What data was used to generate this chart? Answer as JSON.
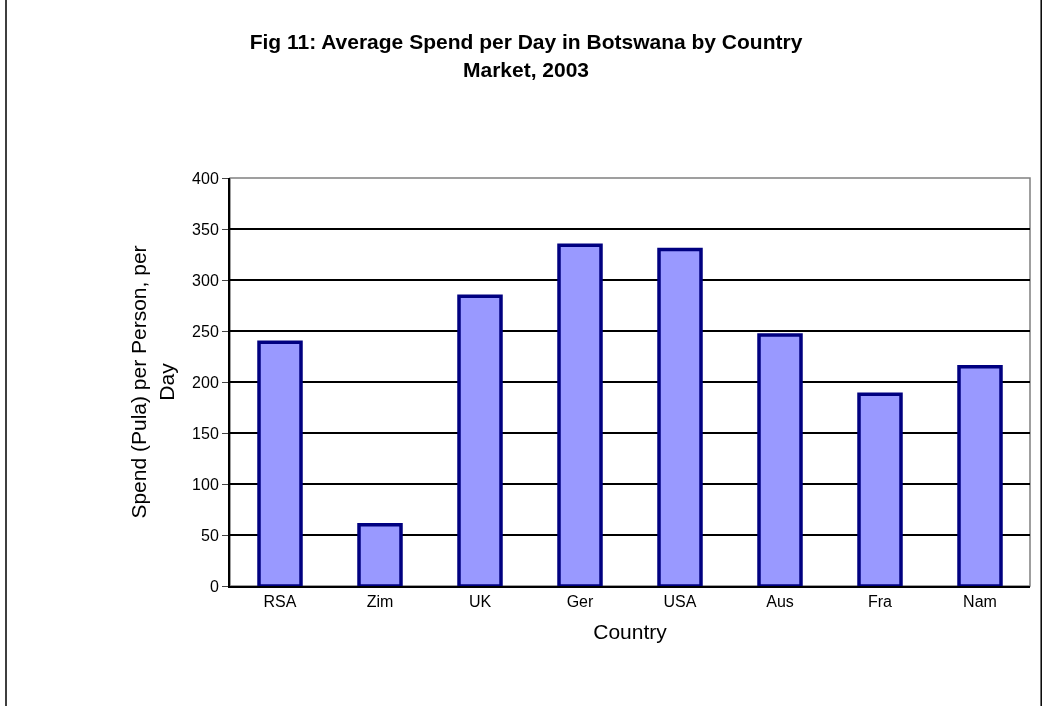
{
  "chart_data": {
    "type": "bar",
    "title": "Fig 11: Average Spend per Day in Botswana by Country Market, 2003",
    "xlabel": "Country",
    "ylabel": "Spend (Pula) per Person, per Day",
    "categories": [
      "RSA",
      "Zim",
      "UK",
      "Ger",
      "USA",
      "Aus",
      "Fra",
      "Nam"
    ],
    "values": [
      239,
      60,
      284,
      334,
      330,
      246,
      188,
      215
    ],
    "color": "#9999ff",
    "ylim": [
      0,
      400
    ],
    "yticks": [
      0,
      50,
      100,
      150,
      200,
      250,
      300,
      350,
      400
    ],
    "grid": "y",
    "legend": false
  }
}
